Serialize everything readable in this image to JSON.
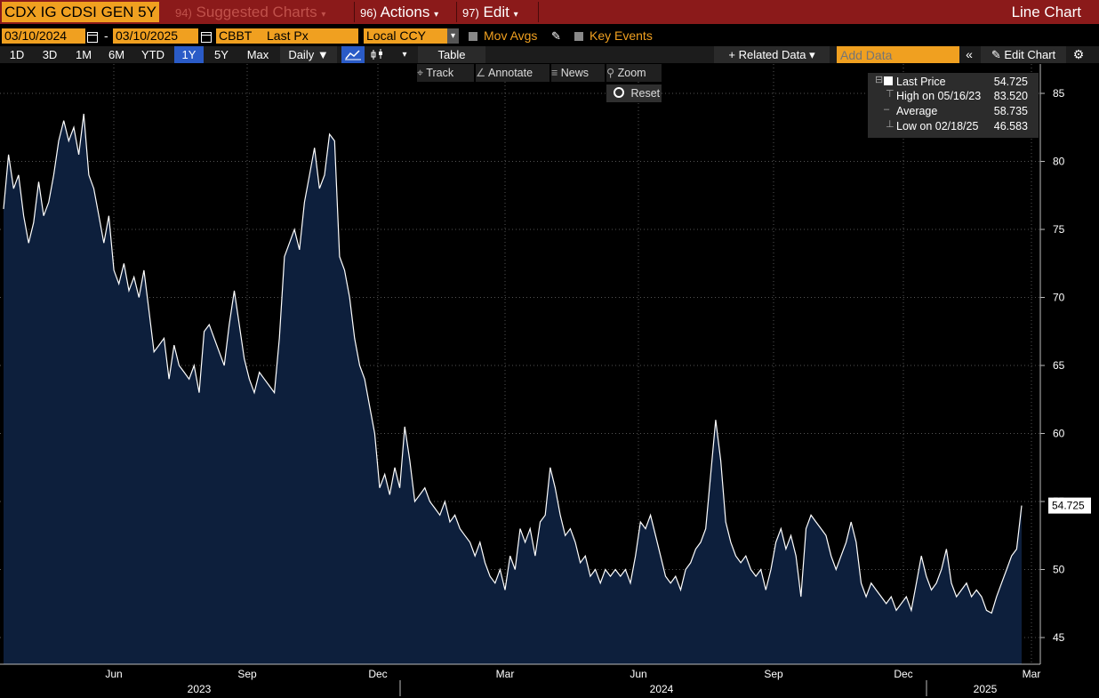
{
  "header": {
    "ticker": "CDX IG CDSI GEN 5Y",
    "suggested_num": "94)",
    "suggested_label": "Suggested Charts",
    "actions_num": "96)",
    "actions_label": "Actions",
    "edit_num": "97)",
    "edit_label": "Edit",
    "view_title": "Line Chart"
  },
  "controls": {
    "start_date": "03/10/2024",
    "date_sep": "-",
    "end_date": "03/10/2025",
    "source": "CBBT",
    "field": "Last Px",
    "currency": "Local CCY",
    "mov_avgs": "Mov Avgs",
    "key_events": "Key Events"
  },
  "periods": [
    {
      "label": "1D",
      "active": false
    },
    {
      "label": "3D",
      "active": false
    },
    {
      "label": "1M",
      "active": false
    },
    {
      "label": "6M",
      "active": false
    },
    {
      "label": "YTD",
      "active": false
    },
    {
      "label": "1Y",
      "active": true
    },
    {
      "label": "5Y",
      "active": false
    },
    {
      "label": "Max",
      "active": false
    }
  ],
  "toolbar": {
    "frequency": "Daily ▼",
    "table": "Table",
    "related_data": "+ Related Data ▾",
    "add_data_placeholder": "Add Data",
    "edit_chart": "Edit Chart"
  },
  "tools": {
    "track": "Track",
    "annotate": "Annotate",
    "news": "News",
    "zoom": "Zoom",
    "reset": "Reset"
  },
  "legend": {
    "last_label": "Last Price",
    "last_value": "54.725",
    "high_label": "High on 05/16/23",
    "high_value": "83.520",
    "avg_label": "Average",
    "avg_value": "58.735",
    "low_label": "Low on 02/18/25",
    "low_value": "46.583"
  },
  "colors": {
    "header_bg": "#8b1a1a",
    "accent_orange": "#f0a020",
    "active_period": "#2a5bc7",
    "area_fill": "#0d1f3c",
    "line": "#ffffff"
  },
  "chart_data": {
    "type": "area",
    "ylim": [
      43,
      87
    ],
    "yticks": [
      45,
      50,
      55,
      60,
      65,
      70,
      75,
      80,
      85
    ],
    "x_month_labels": [
      "Jun",
      "Sep",
      "Dec",
      "Mar",
      "Jun",
      "Sep",
      "Dec",
      "Mar"
    ],
    "x_year_labels": [
      "2023",
      "2024",
      "2025"
    ],
    "last_value_tag": "54.725",
    "grid": true,
    "series": [
      {
        "values": [
          76.5,
          80.5,
          78,
          79,
          76,
          74,
          75.5,
          78.5,
          76,
          77,
          79,
          81.5,
          83,
          81.5,
          82.5,
          80.5,
          83.5,
          79,
          78,
          76,
          74,
          76,
          72,
          71,
          72.5,
          70.5,
          71.5,
          70,
          72,
          69,
          66,
          66.5,
          67,
          64,
          66.5,
          65,
          64.5,
          64,
          65,
          63,
          67.5,
          68,
          67,
          66,
          65,
          68,
          70.5,
          68,
          65.5,
          64,
          63,
          64.5,
          64,
          63.5,
          63,
          67,
          73,
          74,
          75,
          73.5,
          77,
          79,
          81,
          78,
          79,
          82,
          81.5,
          73,
          72,
          70,
          67,
          65,
          64,
          62,
          60,
          56,
          57,
          55.5,
          57.5,
          56,
          60.5,
          58,
          55,
          55.5,
          56,
          55,
          54.5,
          54,
          55,
          53.5,
          54,
          53,
          52.5,
          52,
          51,
          52,
          50.5,
          49.5,
          49,
          50,
          48.5,
          51,
          50,
          53,
          52,
          53,
          51,
          53.5,
          54,
          57.5,
          56,
          54,
          52.5,
          53,
          52,
          50.5,
          51,
          49.5,
          50,
          49,
          50,
          49.5,
          50,
          49.5,
          50,
          49,
          51,
          53.5,
          53,
          54,
          52.5,
          51,
          49.5,
          49,
          49.5,
          48.5,
          50,
          50.5,
          51.5,
          52,
          53,
          57,
          61,
          58,
          53.5,
          52,
          51,
          50.5,
          51,
          50,
          49.5,
          50,
          48.5,
          50,
          52,
          53,
          51.5,
          52.5,
          51,
          48,
          53,
          54,
          53.5,
          53,
          52.5,
          51,
          50,
          51,
          52,
          53.5,
          52,
          49,
          48,
          49,
          48.5,
          48,
          47.5,
          48,
          47,
          47.5,
          48,
          47,
          49,
          51,
          49.5,
          48.5,
          49,
          50,
          51.5,
          49,
          48,
          48.5,
          49,
          48,
          48.5,
          48,
          47,
          46.8,
          48,
          49,
          50,
          51,
          51.5,
          54.7
        ]
      }
    ]
  }
}
